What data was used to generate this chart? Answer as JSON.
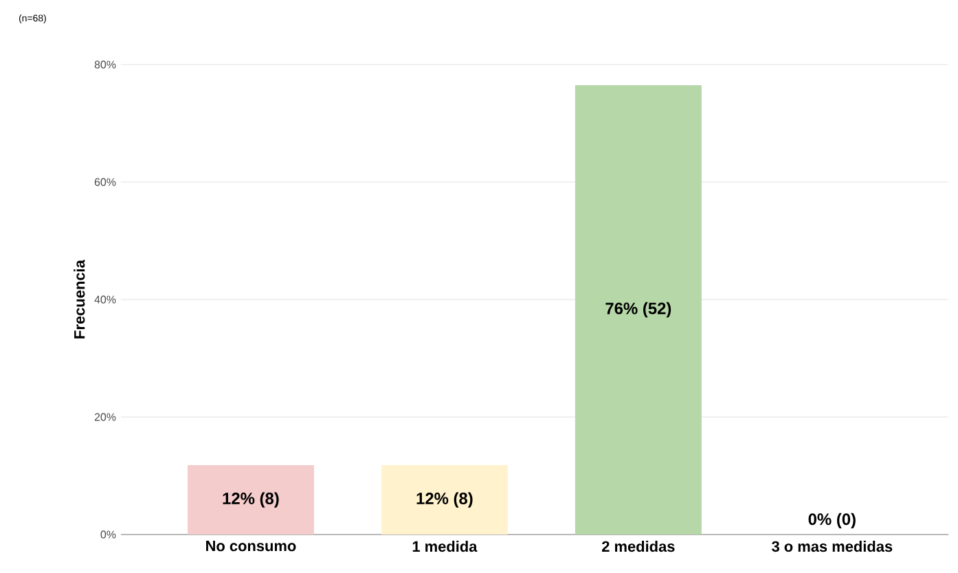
{
  "chart_data": {
    "type": "bar",
    "ylabel": "Frecuencia",
    "annotations": [
      "(n=68)"
    ],
    "categories": [
      "No consumo",
      "1 medida",
      "2 medidas",
      "3 o mas medidas"
    ],
    "values": [
      11.8,
      11.8,
      76.5,
      0
    ],
    "colors": [
      "#f4cccc",
      "#fff2cc",
      "#b6d7a8",
      "#ea9999"
    ],
    "value_labels": [
      "12% (8)",
      "12% (8)",
      "76% (52)",
      "0% (0)"
    ],
    "ylim": [
      0,
      80
    ],
    "yticks": [
      {
        "value": 0,
        "label": "0%"
      },
      {
        "value": 20,
        "label": "20%"
      },
      {
        "value": 40,
        "label": "40%"
      },
      {
        "value": 60,
        "label": "60%"
      },
      {
        "value": 80,
        "label": "80%"
      }
    ],
    "grid": "y"
  }
}
